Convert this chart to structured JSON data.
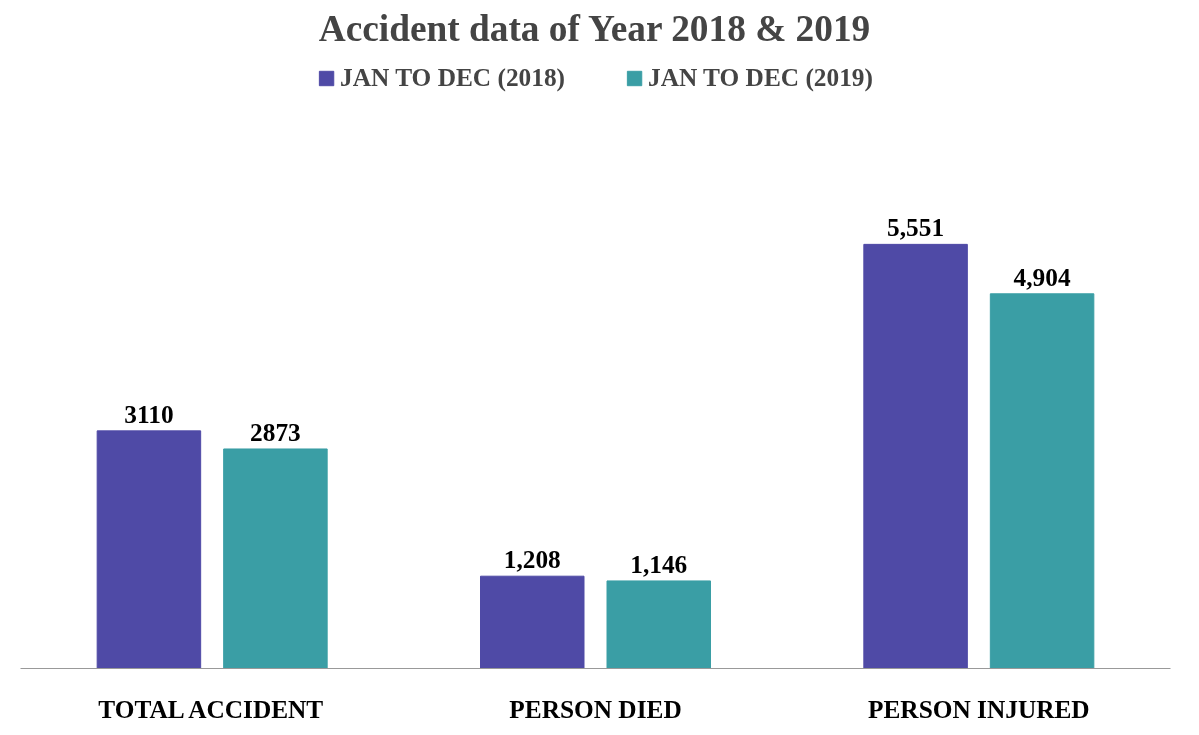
{
  "chart_data": {
    "type": "bar",
    "title": "Accident data of Year 2018 & 2019",
    "categories": [
      "TOTAL ACCIDENT",
      "PERSON DIED",
      "PERSON INJURED"
    ],
    "series": [
      {
        "name": "JAN TO DEC (2018)",
        "color": "#4f4aa6",
        "values": [
          3110,
          1208,
          5551
        ],
        "value_labels": [
          "3110",
          "1,208",
          "5,551"
        ]
      },
      {
        "name": "JAN TO DEC (2019)",
        "color": "#3a9ea5",
        "values": [
          2873,
          1146,
          4904
        ],
        "value_labels": [
          "2873",
          "1,146",
          "4,904"
        ]
      }
    ],
    "legend": "top",
    "grid": false
  }
}
